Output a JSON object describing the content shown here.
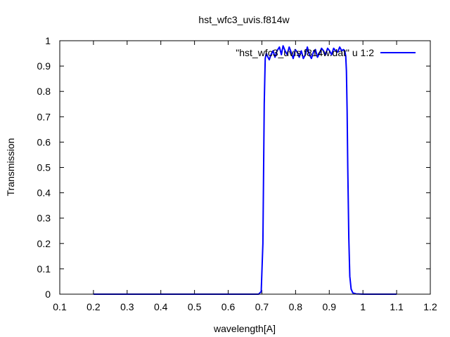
{
  "chart_data": {
    "type": "line",
    "title": "hst_wfc3_uvis.f814w",
    "xlabel": "wavelength[A]",
    "ylabel": "Transmission",
    "xlim": [
      0.1,
      1.2
    ],
    "ylim": [
      0,
      1
    ],
    "xticks": [
      "0.1",
      "0.2",
      "0.3",
      "0.4",
      "0.5",
      "0.6",
      "0.7",
      "0.8",
      "0.9",
      "1",
      "1.1",
      "1.2"
    ],
    "yticks": [
      "0",
      "0.1",
      "0.2",
      "0.3",
      "0.4",
      "0.5",
      "0.6",
      "0.7",
      "0.8",
      "0.9",
      "1"
    ],
    "grid": false,
    "legend": "top-right",
    "series": [
      {
        "name": "\"hst_wfc3_uvis.f814w.dat\" u 1:2",
        "color": "#0000ff",
        "x": [
          0.2,
          0.65,
          0.69,
          0.698,
          0.703,
          0.707,
          0.71,
          0.713,
          0.718,
          0.722,
          0.727,
          0.733,
          0.739,
          0.745,
          0.752,
          0.758,
          0.763,
          0.769,
          0.775,
          0.781,
          0.787,
          0.793,
          0.799,
          0.805,
          0.811,
          0.817,
          0.823,
          0.829,
          0.835,
          0.841,
          0.847,
          0.853,
          0.859,
          0.865,
          0.871,
          0.877,
          0.883,
          0.889,
          0.895,
          0.901,
          0.907,
          0.913,
          0.919,
          0.925,
          0.931,
          0.937,
          0.942,
          0.946,
          0.949,
          0.951,
          0.953,
          0.955,
          0.958,
          0.961,
          0.965,
          0.97,
          0.98,
          1.0,
          1.1
        ],
        "y": [
          0,
          0,
          0,
          0.01,
          0.2,
          0.75,
          0.93,
          0.95,
          0.935,
          0.925,
          0.945,
          0.96,
          0.935,
          0.96,
          0.975,
          0.945,
          0.98,
          0.96,
          0.945,
          0.975,
          0.955,
          0.93,
          0.965,
          0.955,
          0.935,
          0.96,
          0.93,
          0.945,
          0.975,
          0.945,
          0.93,
          0.955,
          0.965,
          0.935,
          0.95,
          0.97,
          0.96,
          0.945,
          0.97,
          0.96,
          0.945,
          0.97,
          0.96,
          0.955,
          0.975,
          0.96,
          0.965,
          0.96,
          0.94,
          0.88,
          0.72,
          0.5,
          0.22,
          0.07,
          0.02,
          0.005,
          0.001,
          0,
          0
        ]
      }
    ]
  }
}
